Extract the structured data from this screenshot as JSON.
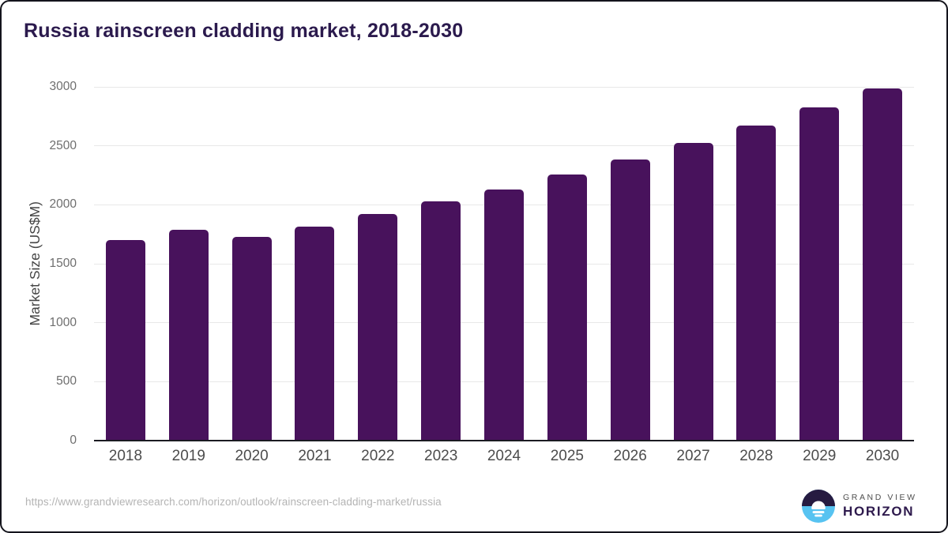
{
  "chart": {
    "title": "Russia rainscreen cladding market, 2018-2030",
    "ylabel": "Market Size (US$M)"
  },
  "chart_data": {
    "type": "bar",
    "title": "Russia rainscreen cladding market, 2018-2030",
    "xlabel": "",
    "ylabel": "Market Size (US$M)",
    "categories": [
      "2018",
      "2019",
      "2020",
      "2021",
      "2022",
      "2023",
      "2024",
      "2025",
      "2026",
      "2027",
      "2028",
      "2029",
      "2030"
    ],
    "values": [
      1700,
      1790,
      1725,
      1815,
      1920,
      2030,
      2130,
      2255,
      2385,
      2525,
      2670,
      2825,
      2990
    ],
    "ylim": [
      0,
      3000
    ],
    "yticks": [
      0,
      500,
      1000,
      1500,
      2000,
      2500,
      3000
    ],
    "grid": true,
    "legend": false,
    "bar_color": "#48125c"
  },
  "footer": {
    "source_url": "https://www.grandviewresearch.com/horizon/outlook/rainscreen-cladding-market/russia",
    "logo": {
      "line1": "GRAND VIEW",
      "line2": "HORIZON",
      "icon": "horizon-sunrise-icon"
    }
  },
  "colors": {
    "bar": "#48125c",
    "title_text": "#2b1a4d",
    "gridline": "#e8e8e8",
    "axis_line": "#1b1b22",
    "logo_blue": "#57c3f1",
    "logo_dark": "#261b41"
  }
}
